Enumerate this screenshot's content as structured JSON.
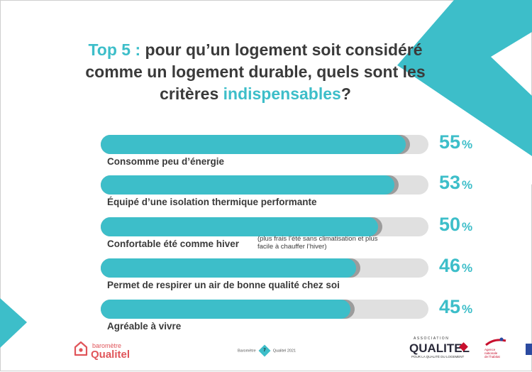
{
  "title": {
    "part1": "Top 5 :",
    "part2": " pour qu’un logement soit considéré comme un logement durable, quels sont les critères ",
    "part3": "indispensables",
    "part4": "?"
  },
  "colors": {
    "accent": "#3dbec9",
    "bar_track": "#e0e0e0",
    "text": "#3a3a3a",
    "brand_red": "#e0555a"
  },
  "chart_data": {
    "type": "bar",
    "orientation": "horizontal",
    "categories": [
      "Consomme peu d’énergie",
      "Équipé d’une isolation thermique performante",
      "Confortable été comme hiver",
      "Permet de respirer un air de bonne qualité chez soi",
      "Agréable à vivre"
    ],
    "values": [
      55,
      53,
      50,
      46,
      45
    ],
    "notes": [
      "",
      "",
      "(plus frais l’été sans climatisation et plus facile à chauffer l’hiver)",
      "",
      ""
    ],
    "unit": "%",
    "xlim": [
      0,
      100
    ],
    "grid": false
  },
  "footer": {
    "logo_left_small": "baromètre",
    "logo_left_big": "Qualitel",
    "center_left": "Baromètre",
    "page_number": "7",
    "center_right": "Qualitel 2021",
    "assoc_small": "ASSOCIATION",
    "assoc_big": "QUALITEL",
    "assoc_tag": "POUR LA QUALITÉ DU LOGEMENT",
    "agence_line1": "Agence",
    "agence_line2": "nationale",
    "agence_line3": "de l’habitat"
  }
}
